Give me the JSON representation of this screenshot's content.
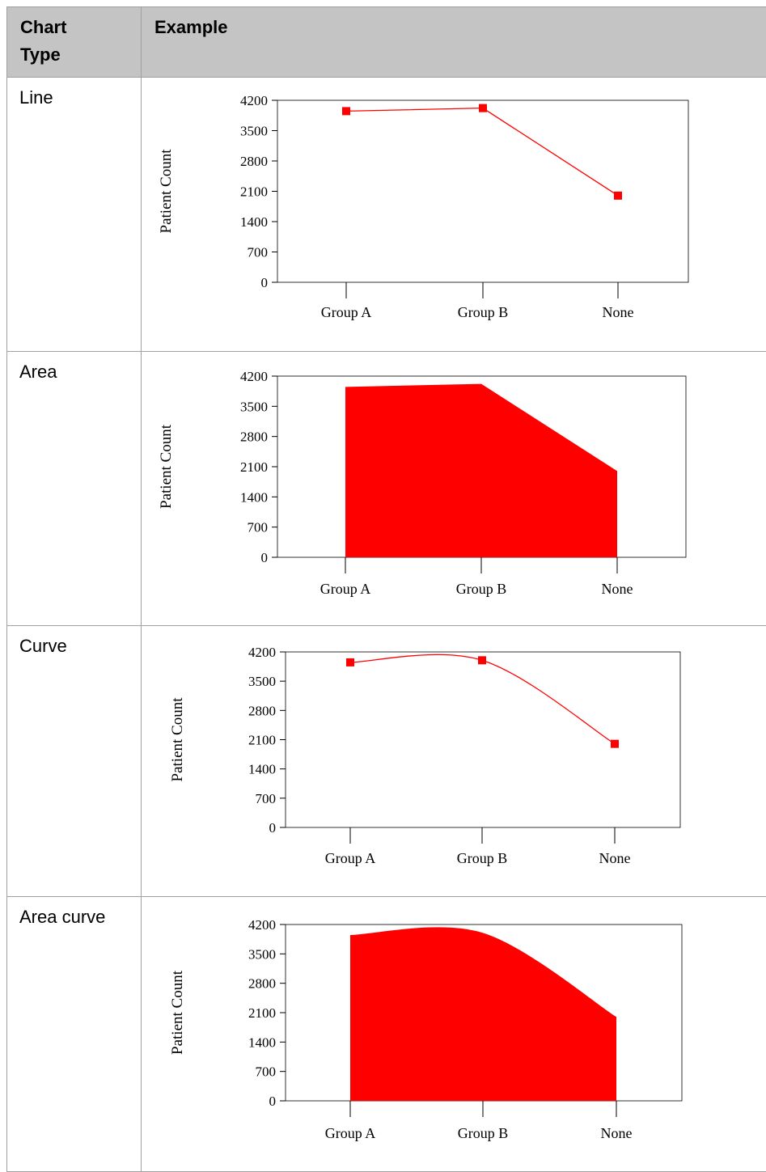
{
  "table": {
    "headers": [
      "Chart\nType",
      "Example"
    ],
    "header_type_line1": "Chart",
    "header_type_line2": "Type",
    "header_example": "Example",
    "rows": [
      {
        "type_label": "Line"
      },
      {
        "type_label": "Area"
      },
      {
        "type_label": "Curve"
      },
      {
        "type_label": "Area curve"
      }
    ]
  },
  "chart_data": [
    {
      "type": "line",
      "categories": [
        "Group A",
        "Group B",
        "None"
      ],
      "values": [
        3950,
        4020,
        2000
      ],
      "ylabel": "Patient Count",
      "yticks": [
        0,
        700,
        1400,
        2100,
        2800,
        3500,
        4200
      ],
      "ylim": [
        0,
        4200
      ],
      "color": "#ff0000",
      "markers": true,
      "smooth": false,
      "fill": false
    },
    {
      "type": "area",
      "categories": [
        "Group A",
        "Group B",
        "None"
      ],
      "values": [
        3950,
        4020,
        2000
      ],
      "ylabel": "Patient Count",
      "yticks": [
        0,
        700,
        1400,
        2100,
        2800,
        3500,
        4200
      ],
      "ylim": [
        0,
        4200
      ],
      "color": "#ff0000",
      "markers": false,
      "smooth": false,
      "fill": true
    },
    {
      "type": "line",
      "categories": [
        "Group A",
        "Group B",
        "None"
      ],
      "values": [
        3950,
        4000,
        2000
      ],
      "ylabel": "Patient Count",
      "yticks": [
        0,
        700,
        1400,
        2100,
        2800,
        3500,
        4200
      ],
      "ylim": [
        0,
        4200
      ],
      "color": "#ff0000",
      "markers": true,
      "smooth": true,
      "fill": false
    },
    {
      "type": "area",
      "categories": [
        "Group A",
        "Group B",
        "None"
      ],
      "values": [
        3950,
        4000,
        2000
      ],
      "ylabel": "Patient Count",
      "yticks": [
        0,
        700,
        1400,
        2100,
        2800,
        3500,
        4200
      ],
      "ylim": [
        0,
        4200
      ],
      "color": "#ff0000",
      "markers": false,
      "smooth": true,
      "fill": true
    }
  ]
}
